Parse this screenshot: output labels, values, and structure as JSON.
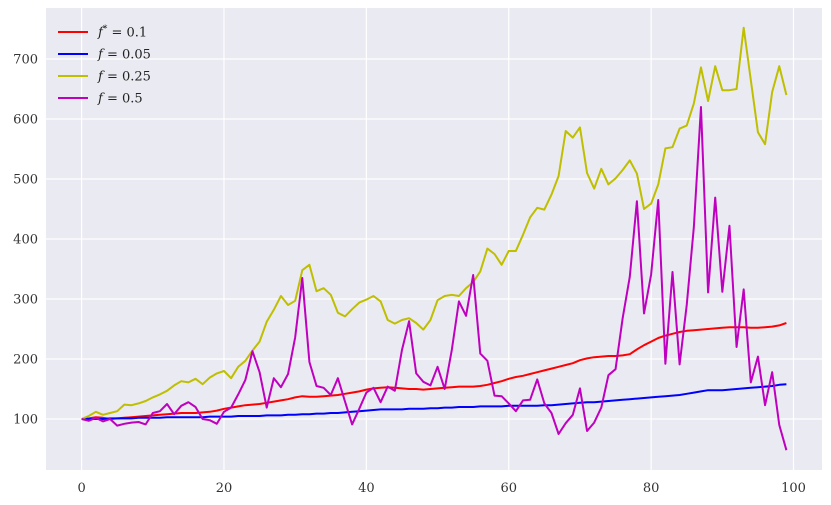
{
  "chart_data": {
    "type": "line",
    "title": "",
    "xlabel": "",
    "ylabel": "",
    "xlim": [
      -5,
      104
    ],
    "ylim": [
      15,
      785
    ],
    "xticks": [
      0,
      20,
      40,
      60,
      80,
      100
    ],
    "yticks": [
      100,
      200,
      300,
      400,
      500,
      600,
      700
    ],
    "grid": true,
    "background": "#eaeaf2",
    "legend_position": "top-left",
    "x": [
      0,
      1,
      2,
      3,
      4,
      5,
      6,
      7,
      8,
      9,
      10,
      11,
      12,
      13,
      14,
      15,
      16,
      17,
      18,
      19,
      20,
      21,
      22,
      23,
      24,
      25,
      26,
      27,
      28,
      29,
      30,
      31,
      32,
      33,
      34,
      35,
      36,
      37,
      38,
      39,
      40,
      41,
      42,
      43,
      44,
      45,
      46,
      47,
      48,
      49,
      50,
      51,
      52,
      53,
      54,
      55,
      56,
      57,
      58,
      59,
      60,
      61,
      62,
      63,
      64,
      65,
      66,
      67,
      68,
      69,
      70,
      71,
      72,
      73,
      74,
      75,
      76,
      77,
      78,
      79,
      80,
      81,
      82,
      83,
      84,
      85,
      86,
      87,
      88,
      89,
      90,
      91,
      92,
      93,
      94,
      95,
      96,
      97,
      98,
      99
    ],
    "series": [
      {
        "name": "f* = 0.1",
        "label_parts": [
          "f",
          "*",
          " = 0.1"
        ],
        "color": "#ff0000",
        "values": [
          100,
          101,
          103,
          102,
          100,
          101,
          102,
          103,
          104,
          105,
          106,
          107,
          108,
          109,
          110,
          110,
          110,
          111,
          112,
          114,
          117,
          119,
          121,
          123,
          124,
          125,
          127,
          129,
          131,
          133,
          136,
          138,
          137,
          137,
          138,
          139,
          140,
          142,
          144,
          146,
          149,
          151,
          152,
          153,
          152,
          151,
          150,
          150,
          149,
          150,
          151,
          152,
          153,
          154,
          154,
          154,
          155,
          157,
          160,
          163,
          167,
          170,
          172,
          175,
          178,
          181,
          184,
          187,
          190,
          193,
          198,
          201,
          203,
          204,
          205,
          205,
          206,
          208,
          216,
          223,
          229,
          235,
          239,
          242,
          245,
          247,
          248,
          249,
          250,
          251,
          252,
          253,
          253,
          253,
          252,
          252,
          253,
          254,
          256,
          260
        ]
      },
      {
        "name": "f = 0.05",
        "label_parts": [
          "f",
          "",
          " = 0.05"
        ],
        "color": "#0000ff",
        "values": [
          100,
          100,
          100,
          100,
          101,
          101,
          101,
          101,
          102,
          102,
          102,
          102,
          103,
          103,
          103,
          103,
          103,
          103,
          104,
          104,
          104,
          104,
          105,
          105,
          105,
          105,
          106,
          106,
          106,
          107,
          107,
          108,
          108,
          109,
          109,
          110,
          110,
          111,
          112,
          113,
          114,
          115,
          116,
          116,
          116,
          116,
          117,
          117,
          117,
          118,
          118,
          119,
          119,
          120,
          120,
          120,
          121,
          121,
          121,
          121,
          122,
          122,
          122,
          122,
          122,
          123,
          123,
          124,
          125,
          126,
          127,
          128,
          128,
          129,
          130,
          131,
          132,
          133,
          134,
          135,
          136,
          137,
          138,
          139,
          140,
          142,
          144,
          146,
          148,
          148,
          148,
          149,
          150,
          151,
          152,
          153,
          154,
          155,
          157,
          158
        ]
      },
      {
        "name": "f = 0.25",
        "label_parts": [
          "f",
          "",
          " = 0.25"
        ],
        "color": "#bfbf00",
        "values": [
          100,
          105,
          112,
          107,
          110,
          113,
          124,
          123,
          126,
          130,
          136,
          141,
          147,
          156,
          163,
          161,
          167,
          158,
          169,
          176,
          180,
          168,
          187,
          197,
          214,
          229,
          262,
          282,
          305,
          290,
          297,
          348,
          357,
          313,
          318,
          307,
          277,
          271,
          283,
          294,
          299,
          305,
          296,
          265,
          259,
          265,
          268,
          260,
          249,
          265,
          298,
          305,
          307,
          305,
          318,
          328,
          346,
          384,
          375,
          357,
          380,
          380,
          407,
          436,
          452,
          449,
          474,
          505,
          580,
          569,
          586,
          510,
          484,
          517,
          491,
          501,
          515,
          531,
          509,
          450,
          459,
          491,
          551,
          553,
          584,
          589,
          626,
          686,
          630,
          688,
          648,
          648,
          650,
          752,
          665,
          578,
          558,
          645,
          688,
          640
        ]
      },
      {
        "name": "f = 0.5",
        "label_parts": [
          "f",
          "",
          " = 0.5"
        ],
        "color": "#bf00bf",
        "values": [
          100,
          97,
          102,
          96,
          100,
          89,
          92,
          94,
          95,
          91,
          110,
          113,
          125,
          108,
          122,
          128,
          120,
          100,
          98,
          92,
          112,
          119,
          141,
          165,
          213,
          178,
          119,
          168,
          153,
          175,
          236,
          335,
          195,
          155,
          152,
          140,
          168,
          129,
          91,
          117,
          144,
          152,
          128,
          154,
          147,
          215,
          263,
          176,
          162,
          156,
          187,
          150,
          215,
          296,
          272,
          340,
          209,
          197,
          139,
          138,
          126,
          113,
          131,
          132,
          166,
          126,
          110,
          75,
          93,
          107,
          151,
          80,
          94,
          119,
          173,
          183,
          268,
          337,
          463,
          276,
          341,
          465,
          192,
          345,
          191,
          290,
          420,
          620,
          311,
          469,
          312,
          422,
          220,
          316,
          161,
          204,
          123,
          178,
          90,
          48
        ]
      }
    ]
  }
}
